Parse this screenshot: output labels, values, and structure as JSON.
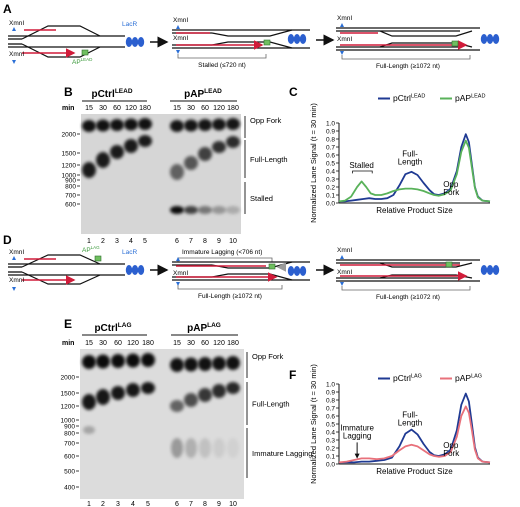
{
  "panels": {
    "A": "A",
    "B": "B",
    "C": "C",
    "D": "D",
    "E": "E",
    "F": "F"
  },
  "schematic_top": {
    "xmni": "XmnI",
    "lacr": "LacR",
    "ap_main": "AP",
    "ap_sup": "LEAD",
    "stalled": "Stalled (≤720 nt)",
    "full_length": "Full-Length (≥1072 nt)"
  },
  "schematic_bottom": {
    "xmni": "XmnI",
    "lacr": "LacR",
    "ap_main": "AP",
    "ap_sup": "LAG",
    "immature": "Immature Lagging (<706 nt)",
    "full_length": "Full-Length (≥1072 nt)"
  },
  "gel_B": {
    "min_label": "min",
    "ctrl_main": "pCtrl",
    "ctrl_sup": "LEAD",
    "ap_main": "pAP",
    "ap_sup": "LEAD",
    "times": [
      "15",
      "30",
      "60",
      "120",
      "180",
      "15",
      "30",
      "60",
      "120",
      "180"
    ],
    "lanes": [
      "1",
      "2",
      "3",
      "4",
      "5",
      "6",
      "7",
      "8",
      "9",
      "10"
    ],
    "markers": [
      "2000",
      "1500",
      "1200",
      "1000",
      "900",
      "800",
      "700",
      "600"
    ],
    "bands": [
      "Opp Fork",
      "Full-Length",
      "Stalled"
    ]
  },
  "gel_E": {
    "min_label": "min",
    "ctrl_main": "pCtrl",
    "ctrl_sup": "LAG",
    "ap_main": "pAP",
    "ap_sup": "LAG",
    "times": [
      "15",
      "30",
      "60",
      "120",
      "180",
      "15",
      "30",
      "60",
      "120",
      "180"
    ],
    "lanes": [
      "1",
      "2",
      "3",
      "4",
      "5",
      "6",
      "7",
      "8",
      "9",
      "10"
    ],
    "markers": [
      "2000",
      "1500",
      "1200",
      "1000",
      "900",
      "800",
      "700",
      "600",
      "500",
      "400"
    ],
    "bands": [
      "Opp Fork",
      "Full-Length",
      "Immature Lagging"
    ]
  },
  "chart_data": [
    {
      "type": "line",
      "panel": "C",
      "ylabel": "Normalized Lane Signal (t = 30 min)",
      "xlabel": "Relative Product Size",
      "yticks": [
        "0.0",
        "0.1",
        "0.2",
        "0.3",
        "0.4",
        "0.5",
        "0.6",
        "0.7",
        "0.8",
        "0.9",
        "1.0"
      ],
      "ylim": [
        0,
        1.0
      ],
      "xlim": [
        0,
        1
      ],
      "legend_position": "top",
      "series": [
        {
          "name_main": "pCtrl",
          "name_sup": "LEAD",
          "color": "#1f3a93",
          "x": [
            0,
            0.04,
            0.08,
            0.12,
            0.16,
            0.2,
            0.24,
            0.28,
            0.32,
            0.36,
            0.4,
            0.44,
            0.48,
            0.52,
            0.56,
            0.6,
            0.63,
            0.66,
            0.7,
            0.74,
            0.78,
            0.81,
            0.84,
            0.86,
            0.88,
            0.9,
            0.92,
            0.95,
            1.0
          ],
          "y": [
            0.02,
            0.02,
            0.03,
            0.04,
            0.05,
            0.06,
            0.05,
            0.05,
            0.06,
            0.1,
            0.22,
            0.36,
            0.39,
            0.35,
            0.25,
            0.16,
            0.11,
            0.1,
            0.12,
            0.18,
            0.4,
            0.7,
            0.86,
            0.76,
            0.48,
            0.2,
            0.08,
            0.03,
            0.02
          ]
        },
        {
          "name_main": "pAP",
          "name_sup": "LEAD",
          "color": "#59b25a",
          "x": [
            0,
            0.04,
            0.08,
            0.12,
            0.15,
            0.18,
            0.21,
            0.24,
            0.28,
            0.32,
            0.36,
            0.4,
            0.44,
            0.48,
            0.52,
            0.56,
            0.6,
            0.63,
            0.66,
            0.7,
            0.74,
            0.78,
            0.81,
            0.84,
            0.86,
            0.88,
            0.9,
            0.92,
            0.95,
            1.0
          ],
          "y": [
            0.02,
            0.03,
            0.08,
            0.2,
            0.27,
            0.2,
            0.12,
            0.1,
            0.1,
            0.12,
            0.15,
            0.17,
            0.18,
            0.18,
            0.17,
            0.15,
            0.12,
            0.1,
            0.09,
            0.11,
            0.16,
            0.36,
            0.64,
            0.78,
            0.69,
            0.44,
            0.19,
            0.07,
            0.03,
            0.02
          ]
        }
      ],
      "annotations": [
        "Stalled",
        "Full-Length",
        "Opp Fork"
      ]
    },
    {
      "type": "line",
      "panel": "F",
      "ylabel": "Normalized Lane Signal (t = 30 min)",
      "xlabel": "Relative Product Size",
      "yticks": [
        "0.0",
        "0.1",
        "0.2",
        "0.3",
        "0.4",
        "0.5",
        "0.6",
        "0.7",
        "0.8",
        "0.9",
        "1.0"
      ],
      "ylim": [
        0,
        1.0
      ],
      "xlim": [
        0,
        1
      ],
      "legend_position": "top",
      "series": [
        {
          "name_main": "pCtrl",
          "name_sup": "LAG",
          "color": "#1f3a93",
          "x": [
            0,
            0.05,
            0.1,
            0.15,
            0.2,
            0.25,
            0.3,
            0.35,
            0.4,
            0.44,
            0.48,
            0.52,
            0.56,
            0.6,
            0.63,
            0.66,
            0.7,
            0.74,
            0.78,
            0.81,
            0.84,
            0.86,
            0.88,
            0.9,
            0.92,
            0.95,
            1.0
          ],
          "y": [
            0.02,
            0.02,
            0.02,
            0.03,
            0.03,
            0.04,
            0.05,
            0.08,
            0.22,
            0.38,
            0.43,
            0.37,
            0.25,
            0.15,
            0.11,
            0.1,
            0.12,
            0.18,
            0.42,
            0.74,
            0.88,
            0.78,
            0.5,
            0.21,
            0.08,
            0.03,
            0.02
          ]
        },
        {
          "name_main": "pAP",
          "name_sup": "LAG",
          "color": "#e8717b",
          "x": [
            0,
            0.05,
            0.1,
            0.15,
            0.2,
            0.25,
            0.3,
            0.35,
            0.4,
            0.44,
            0.48,
            0.52,
            0.56,
            0.6,
            0.63,
            0.66,
            0.7,
            0.74,
            0.78,
            0.81,
            0.84,
            0.86,
            0.88,
            0.9,
            0.92,
            0.95,
            1.0
          ],
          "y": [
            0.02,
            0.03,
            0.05,
            0.07,
            0.07,
            0.06,
            0.07,
            0.1,
            0.17,
            0.22,
            0.24,
            0.22,
            0.17,
            0.12,
            0.1,
            0.09,
            0.1,
            0.15,
            0.34,
            0.6,
            0.72,
            0.64,
            0.42,
            0.18,
            0.07,
            0.03,
            0.02
          ]
        }
      ],
      "annotations": [
        "Full-Length",
        "Immature Lagging",
        "Opp Fork"
      ]
    }
  ]
}
